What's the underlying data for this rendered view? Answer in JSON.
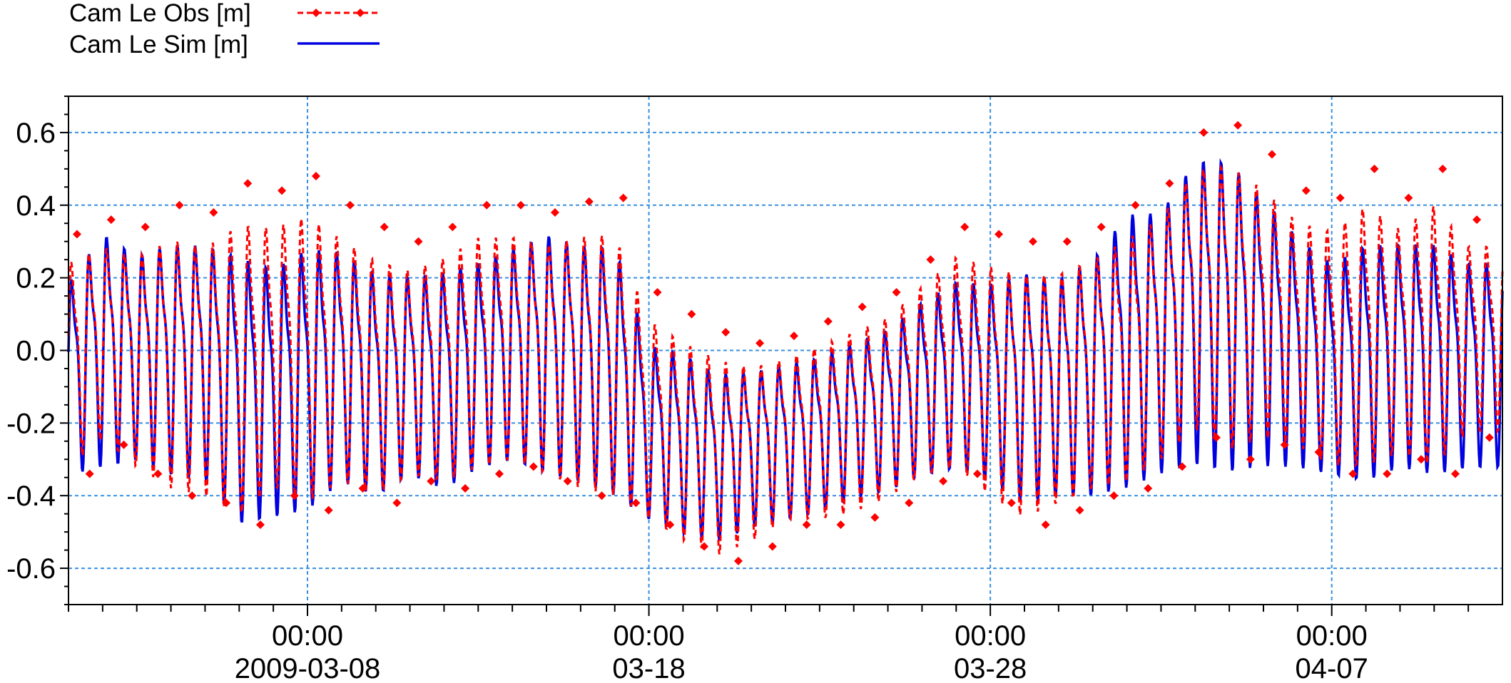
{
  "chart_data": {
    "type": "line",
    "title": "",
    "xlabel": "",
    "ylabel": "",
    "x_range": [
      "2009-03-01",
      "2009-04-12"
    ],
    "ylim": [
      -0.7,
      0.7
    ],
    "y_ticks": [
      {
        "value": 0.6,
        "label": "0.6"
      },
      {
        "value": 0.4,
        "label": "0.4"
      },
      {
        "value": 0.2,
        "label": "0.2"
      },
      {
        "value": 0.0,
        "label": "0.0"
      },
      {
        "value": -0.2,
        "label": "-0.2"
      },
      {
        "value": -0.4,
        "label": "-0.4"
      },
      {
        "value": -0.6,
        "label": "-0.6"
      }
    ],
    "x_ticks": [
      {
        "date": "2009-03-08",
        "time_label": "00:00",
        "date_label": "2009-03-08"
      },
      {
        "date": "2009-03-18",
        "time_label": "00:00",
        "date_label": "03-18"
      },
      {
        "date": "2009-03-28",
        "time_label": "00:00",
        "date_label": "03-28"
      },
      {
        "date": "2009-04-07",
        "time_label": "00:00",
        "date_label": "04-07"
      }
    ],
    "grid": true,
    "legend_placement": "top-left",
    "series": [
      {
        "name": "Cam Le Obs [m]",
        "color": "#ff0000",
        "style": "dashed-with-markers",
        "x": [
          "2009-03-01",
          "2009-03-02",
          "2009-03-03",
          "2009-03-04",
          "2009-03-05",
          "2009-03-06",
          "2009-03-07",
          "2009-03-08",
          "2009-03-09",
          "2009-03-10",
          "2009-03-11",
          "2009-03-12",
          "2009-03-13",
          "2009-03-14",
          "2009-03-15",
          "2009-03-16",
          "2009-03-17",
          "2009-03-18",
          "2009-03-19",
          "2009-03-20",
          "2009-03-21",
          "2009-03-22",
          "2009-03-23",
          "2009-03-24",
          "2009-03-25",
          "2009-03-26",
          "2009-03-27",
          "2009-03-28",
          "2009-03-29",
          "2009-03-30",
          "2009-03-31",
          "2009-04-01",
          "2009-04-02",
          "2009-04-03",
          "2009-04-04",
          "2009-04-05",
          "2009-04-06",
          "2009-04-07",
          "2009-04-08",
          "2009-04-09",
          "2009-04-10",
          "2009-04-11"
        ],
        "high": [
          0.32,
          0.36,
          0.34,
          0.4,
          0.38,
          0.46,
          0.44,
          0.48,
          0.4,
          0.34,
          0.3,
          0.34,
          0.4,
          0.4,
          0.38,
          0.41,
          0.42,
          0.16,
          0.1,
          0.05,
          0.02,
          0.04,
          0.08,
          0.12,
          0.16,
          0.25,
          0.34,
          0.32,
          0.3,
          0.3,
          0.34,
          0.4,
          0.46,
          0.6,
          0.62,
          0.54,
          0.44,
          0.42,
          0.5,
          0.42,
          0.5,
          0.36
        ],
        "low": [
          -0.34,
          -0.26,
          -0.34,
          -0.4,
          -0.42,
          -0.48,
          -0.4,
          -0.44,
          -0.38,
          -0.42,
          -0.36,
          -0.38,
          -0.34,
          -0.32,
          -0.36,
          -0.4,
          -0.42,
          -0.48,
          -0.54,
          -0.58,
          -0.54,
          -0.48,
          -0.48,
          -0.46,
          -0.42,
          -0.36,
          -0.34,
          -0.42,
          -0.48,
          -0.44,
          -0.4,
          -0.38,
          -0.32,
          -0.24,
          -0.3,
          -0.26,
          -0.28,
          -0.34,
          -0.34,
          -0.3,
          -0.34,
          -0.24
        ]
      },
      {
        "name": "Cam Le Sim [m]",
        "color": "#0000e0",
        "style": "solid",
        "x": [
          "2009-03-01",
          "2009-03-02",
          "2009-03-03",
          "2009-03-04",
          "2009-03-05",
          "2009-03-06",
          "2009-03-07",
          "2009-03-08",
          "2009-03-09",
          "2009-03-10",
          "2009-03-11",
          "2009-03-12",
          "2009-03-13",
          "2009-03-14",
          "2009-03-15",
          "2009-03-16",
          "2009-03-17",
          "2009-03-18",
          "2009-03-19",
          "2009-03-20",
          "2009-03-21",
          "2009-03-22",
          "2009-03-23",
          "2009-03-24",
          "2009-03-25",
          "2009-03-26",
          "2009-03-27",
          "2009-03-28",
          "2009-03-29",
          "2009-03-30",
          "2009-03-31",
          "2009-04-01",
          "2009-04-02",
          "2009-04-03",
          "2009-04-04",
          "2009-04-05",
          "2009-04-06",
          "2009-04-07",
          "2009-04-08",
          "2009-04-09",
          "2009-04-10",
          "2009-04-11"
        ],
        "high": [
          0.26,
          0.41,
          0.34,
          0.38,
          0.38,
          0.36,
          0.32,
          0.38,
          0.36,
          0.3,
          0.28,
          0.3,
          0.32,
          0.36,
          0.41,
          0.38,
          0.38,
          0.08,
          0.06,
          0.0,
          0.0,
          0.02,
          0.04,
          0.08,
          0.12,
          0.2,
          0.26,
          0.26,
          0.3,
          0.28,
          0.34,
          0.48,
          0.48,
          0.64,
          0.64,
          0.52,
          0.4,
          0.32,
          0.38,
          0.38,
          0.38,
          0.32
        ],
        "low": [
          -0.36,
          -0.34,
          -0.32,
          -0.36,
          -0.38,
          -0.5,
          -0.48,
          -0.46,
          -0.38,
          -0.42,
          -0.36,
          -0.4,
          -0.34,
          -0.32,
          -0.36,
          -0.38,
          -0.42,
          -0.48,
          -0.52,
          -0.54,
          -0.5,
          -0.48,
          -0.46,
          -0.42,
          -0.4,
          -0.36,
          -0.34,
          -0.38,
          -0.44,
          -0.42,
          -0.42,
          -0.4,
          -0.36,
          -0.34,
          -0.36,
          -0.34,
          -0.34,
          -0.36,
          -0.38,
          -0.34,
          -0.36,
          -0.34
        ]
      }
    ]
  }
}
